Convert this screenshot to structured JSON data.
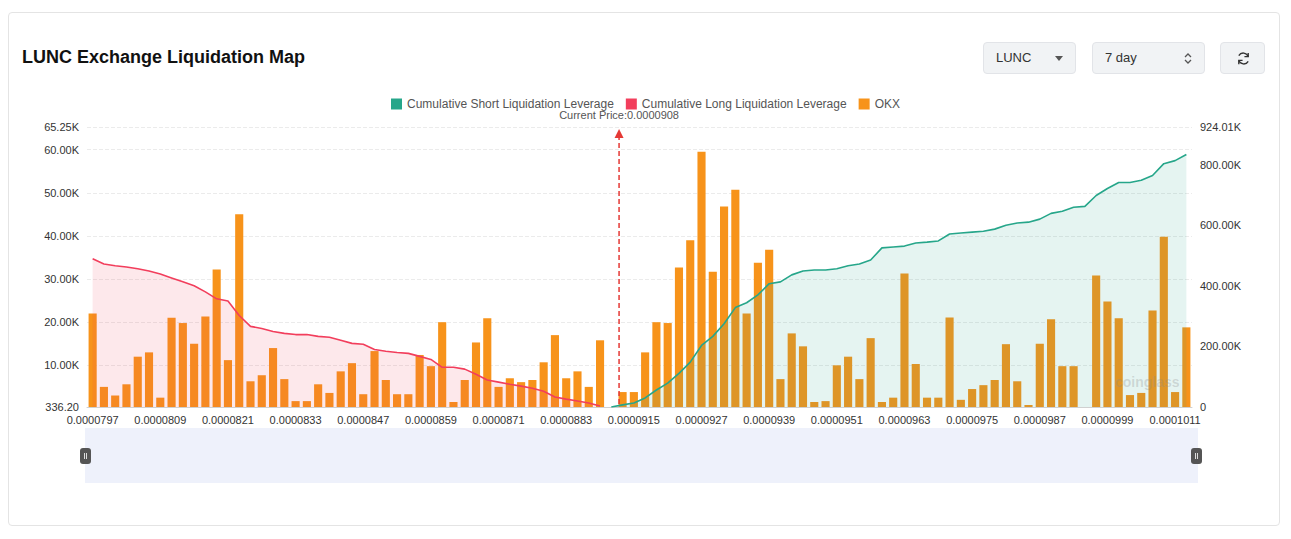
{
  "chart_data": {
    "type": "bar",
    "title": "LUNC Exchange Liquidation Map",
    "controls": {
      "symbol": "LUNC",
      "period": "7 day"
    },
    "watermark": "coinglass",
    "annotation": {
      "label": "Current Price:0.0000908",
      "value": 9.08e-05
    },
    "categories": [
      "0.0000797",
      null,
      null,
      null,
      null,
      null,
      "0.0000809",
      null,
      null,
      null,
      null,
      null,
      "0.0000821",
      null,
      null,
      null,
      null,
      null,
      "0.0000833",
      null,
      null,
      null,
      null,
      null,
      "0.0000847",
      null,
      null,
      null,
      null,
      null,
      "0.0000859",
      null,
      null,
      null,
      null,
      null,
      "0.0000871",
      null,
      null,
      null,
      null,
      null,
      "0.0000883",
      null,
      null,
      null,
      null,
      null,
      "0.0000915",
      null,
      null,
      null,
      null,
      null,
      "0.0000927",
      null,
      null,
      null,
      null,
      null,
      "0.0000939",
      null,
      null,
      null,
      null,
      null,
      "0.0000951",
      null,
      null,
      null,
      null,
      null,
      "0.0000963",
      null,
      null,
      null,
      null,
      null,
      "0.0000975",
      null,
      null,
      null,
      null,
      null,
      "0.0000987",
      null,
      null,
      null,
      null,
      null,
      "0.0000999",
      null,
      null,
      null,
      null,
      null,
      "0.0001011",
      null
    ],
    "series": [
      {
        "name": "Cumulative Short Liquidation Leverage",
        "type": "line",
        "color": "#26a68a",
        "axis": "y2",
        "values": [
          null,
          null,
          null,
          null,
          null,
          null,
          null,
          null,
          null,
          null,
          null,
          null,
          null,
          null,
          null,
          null,
          null,
          null,
          null,
          null,
          null,
          null,
          null,
          null,
          null,
          null,
          null,
          null,
          null,
          null,
          null,
          null,
          null,
          null,
          null,
          null,
          null,
          null,
          null,
          null,
          null,
          null,
          null,
          null,
          null,
          null,
          0,
          7000,
          13000,
          30000,
          56000,
          79000,
          111000,
          148000,
          203000,
          233000,
          275000,
          328000,
          344000,
          370000,
          407000,
          413000,
          436000,
          449000,
          452000,
          452000,
          456000,
          466000,
          472000,
          485000,
          525000,
          528000,
          531000,
          541000,
          544000,
          548000,
          571000,
          574000,
          577000,
          580000,
          587000,
          600000,
          607000,
          610000,
          620000,
          639000,
          646000,
          659000,
          662000,
          698000,
          721000,
          741000,
          741000,
          748000,
          764000,
          803000,
          813000,
          833000
        ]
      },
      {
        "name": "Cumulative Long Liquidation Leverage",
        "type": "line",
        "color": "#f23e5c",
        "axis": "y2",
        "values": [
          489000,
          472000,
          466000,
          462000,
          456000,
          449000,
          439000,
          426000,
          413000,
          400000,
          380000,
          357000,
          350000,
          302000,
          266000,
          259000,
          249000,
          243000,
          239000,
          239000,
          233000,
          230000,
          220000,
          210000,
          207000,
          190000,
          184000,
          180000,
          177000,
          167000,
          157000,
          131000,
          131000,
          125000,
          108000,
          89000,
          82000,
          75000,
          69000,
          62000,
          52000,
          33000,
          26000,
          20000,
          13000,
          3000,
          null,
          null,
          null,
          null,
          null,
          null,
          null,
          null,
          null,
          null,
          null,
          null,
          null,
          null,
          null,
          null,
          null,
          null,
          null,
          null,
          null,
          null,
          null,
          null,
          null,
          null,
          null,
          null,
          null,
          null,
          null,
          null,
          null,
          null,
          null,
          null,
          null,
          null,
          null,
          null,
          null,
          null,
          null,
          null,
          null,
          null,
          null,
          null,
          null,
          null,
          null,
          null
        ]
      },
      {
        "name": "OKX",
        "type": "bar",
        "color": "#f7931a",
        "values": [
          22000,
          5000,
          3000,
          5600,
          12000,
          13000,
          2500,
          21000,
          19800,
          15000,
          21300,
          32200,
          11200,
          45000,
          6300,
          7700,
          14000,
          6800,
          1700,
          1700,
          5600,
          3600,
          8600,
          10500,
          3300,
          13300,
          6600,
          3300,
          3300,
          12400,
          9800,
          20000,
          1500,
          6600,
          15300,
          20900,
          5000,
          7000,
          6100,
          6600,
          10700,
          17000,
          7000,
          8600,
          5000,
          15800,
          null,
          3800,
          3800,
          13000,
          20000,
          19800,
          32700,
          39000,
          59500,
          31700,
          46800,
          50700,
          22000,
          33800,
          36800,
          6800,
          17400,
          14400,
          1500,
          1700,
          10000,
          12000,
          6800,
          16300,
          1500,
          2500,
          31300,
          10300,
          2500,
          2500,
          21100,
          2000,
          4500,
          5400,
          6600,
          14900,
          6300,
          800,
          15000,
          20700,
          9800,
          9800,
          null,
          30800,
          24800,
          20900,
          3100,
          3600,
          22700,
          39800,
          3800,
          18800
        ]
      }
    ],
    "ylim": [
      336.2,
      65250
    ],
    "yticks": [
      {
        "value": 336.2,
        "label": "336.20"
      },
      {
        "value": 10000,
        "label": "10.00K"
      },
      {
        "value": 20000,
        "label": "20.00K"
      },
      {
        "value": 30000,
        "label": "30.00K"
      },
      {
        "value": 40000,
        "label": "40.00K"
      },
      {
        "value": 50000,
        "label": "50.00K"
      },
      {
        "value": 60000,
        "label": "60.00K"
      },
      {
        "value": 65250,
        "label": "65.25K"
      }
    ],
    "y2lim": [
      0,
      924010
    ],
    "y2ticks": [
      0,
      {
        "value": 200000,
        "label": "200.00K"
      },
      {
        "value": 400000,
        "label": "400.00K"
      },
      {
        "value": 600000,
        "label": "600.00K"
      },
      {
        "value": 800000,
        "label": "800.00K"
      },
      {
        "value": 924010,
        "label": "924.01K"
      }
    ],
    "grid": true,
    "legend": "top"
  }
}
